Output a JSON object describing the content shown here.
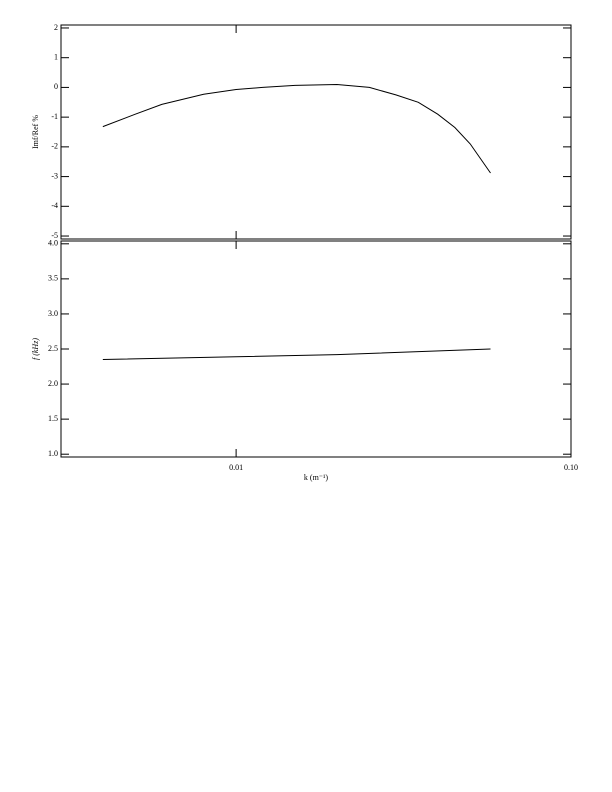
{
  "chart_data": [
    {
      "type": "line",
      "ylabel": "Imf/Ref %",
      "x": [
        0.004,
        0.005,
        0.006,
        0.008,
        0.01,
        0.012,
        0.015,
        0.02,
        0.025,
        0.03,
        0.035,
        0.04,
        0.045,
        0.05,
        0.0575
      ],
      "series": [
        {
          "color": "#000000",
          "values": [
            -1.32,
            -0.9,
            -0.57,
            -0.23,
            -0.07,
            0.0,
            0.07,
            0.1,
            0.0,
            -0.25,
            -0.5,
            -0.9,
            -1.35,
            -1.9,
            -2.88
          ]
        }
      ],
      "xlim": [
        0.003,
        0.1
      ],
      "xscale": "log",
      "ylim": [
        -5.1,
        2.1
      ],
      "yticks": [
        -5,
        -4,
        -3,
        -2,
        -1,
        0,
        1,
        2
      ]
    },
    {
      "type": "line",
      "ylabel": "f (kHz)",
      "xlabel": "k (m⁻¹)",
      "x": [
        0.004,
        0.01,
        0.02,
        0.0575
      ],
      "series": [
        {
          "color": "#000000",
          "values": [
            2.35,
            2.39,
            2.42,
            2.5
          ]
        }
      ],
      "xlim": [
        0.003,
        0.1
      ],
      "xscale": "log",
      "xticks": [
        {
          "value": 0.01,
          "label": "0.01"
        },
        {
          "value": 0.1,
          "label": "0.10"
        }
      ],
      "ylim": [
        0.96,
        4.04
      ],
      "yticks": [
        {
          "value": 1,
          "label": "1.0"
        },
        {
          "value": 1.5,
          "label": "1.5"
        },
        {
          "value": 2,
          "label": "2.0"
        },
        {
          "value": 2.5,
          "label": "2.5"
        },
        {
          "value": 3,
          "label": "3.0"
        },
        {
          "value": 3.5,
          "label": "3.5"
        },
        {
          "value": 4,
          "label": "4.0"
        }
      ]
    }
  ]
}
